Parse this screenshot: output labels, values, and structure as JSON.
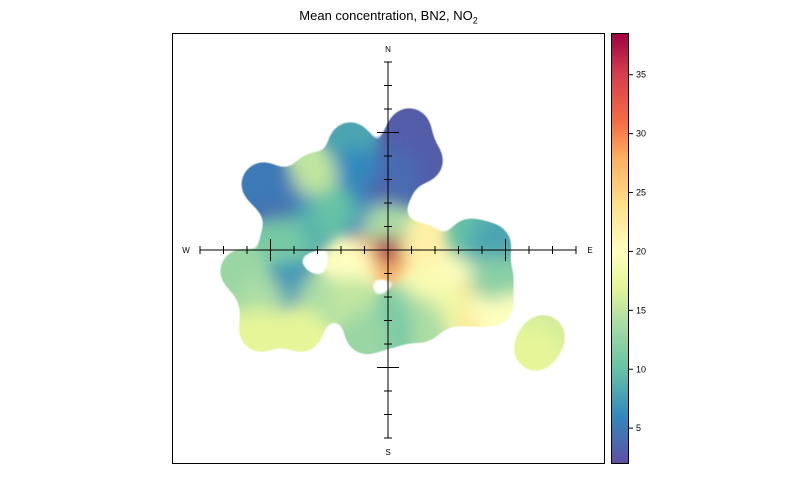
{
  "chart_data": {
    "type": "heatmap",
    "subtype": "polar-plot",
    "title": "Mean concentration, BN2, NO",
    "title_subscript": "2",
    "direction_labels": {
      "n": "N",
      "e": "E",
      "s": "S",
      "w": "W"
    },
    "colorbar": {
      "range": [
        2,
        38.5
      ],
      "ticks": [
        5,
        10,
        15,
        20,
        25,
        30,
        35
      ],
      "tick_labels": [
        "5",
        "10",
        "15",
        "20",
        "25",
        "30",
        "35"
      ],
      "palette": [
        [
          2,
          "#5E4FA2"
        ],
        [
          6,
          "#3288BD"
        ],
        [
          10,
          "#66C2A5"
        ],
        [
          14,
          "#ABDDA4"
        ],
        [
          17,
          "#E6F598"
        ],
        [
          20,
          "#FFFFBF"
        ],
        [
          24,
          "#FEE08B"
        ],
        [
          28,
          "#FDAE61"
        ],
        [
          31,
          "#F46D43"
        ],
        [
          35,
          "#D53E4F"
        ],
        [
          38.5,
          "#9E0142"
        ]
      ]
    },
    "grid": false,
    "surface_points_uv_value": [
      [
        0,
        0,
        38
      ],
      [
        -0.6,
        0.3,
        29
      ],
      [
        0.6,
        0.1,
        28
      ],
      [
        0,
        -0.5,
        27
      ],
      [
        -1.6,
        -0.6,
        20
      ],
      [
        1.4,
        0.2,
        22
      ],
      [
        2.0,
        -1.1,
        21
      ],
      [
        3.3,
        -0.9,
        20
      ],
      [
        3.5,
        -2.3,
        24
      ],
      [
        4.4,
        -2.3,
        20
      ],
      [
        2.4,
        -2.3,
        18
      ],
      [
        1.5,
        -1.8,
        19
      ],
      [
        3.5,
        0.4,
        10
      ],
      [
        4.3,
        0.2,
        8
      ],
      [
        4.4,
        -1.2,
        12
      ],
      [
        0.7,
        4.5,
        3
      ],
      [
        0.9,
        5.1,
        3
      ],
      [
        1.4,
        3.8,
        3
      ],
      [
        0.3,
        3.4,
        4
      ],
      [
        0.1,
        2.6,
        4
      ],
      [
        -0.8,
        2.1,
        3
      ],
      [
        -1.2,
        1.5,
        6
      ],
      [
        -1.6,
        4.5,
        8
      ],
      [
        -1.4,
        3.4,
        6
      ],
      [
        -0.1,
        1.0,
        14
      ],
      [
        -4.6,
        2.1,
        4
      ],
      [
        -5.3,
        2.8,
        5
      ],
      [
        -3.7,
        2.6,
        5
      ],
      [
        -2.9,
        1.5,
        6
      ],
      [
        -3.3,
        0.9,
        9
      ],
      [
        -3.1,
        3.2,
        15
      ],
      [
        -2.3,
        1.7,
        10
      ],
      [
        -4.5,
        0.4,
        11
      ],
      [
        -4.2,
        -1.5,
        7
      ],
      [
        -6.2,
        -0.9,
        13
      ],
      [
        -5.4,
        -2.1,
        14
      ],
      [
        -2.9,
        -2.1,
        14
      ],
      [
        -1.6,
        -2.1,
        15
      ],
      [
        -3.7,
        -3.4,
        17
      ],
      [
        -5.4,
        -3.4,
        17
      ],
      [
        0.5,
        -2.6,
        12
      ],
      [
        1.4,
        -3.0,
        14
      ],
      [
        0.1,
        -3.2,
        11
      ],
      [
        -0.9,
        -3.5,
        13
      ],
      [
        6.6,
        -3.7,
        16
      ],
      [
        6.3,
        -4.2,
        17
      ]
    ]
  }
}
